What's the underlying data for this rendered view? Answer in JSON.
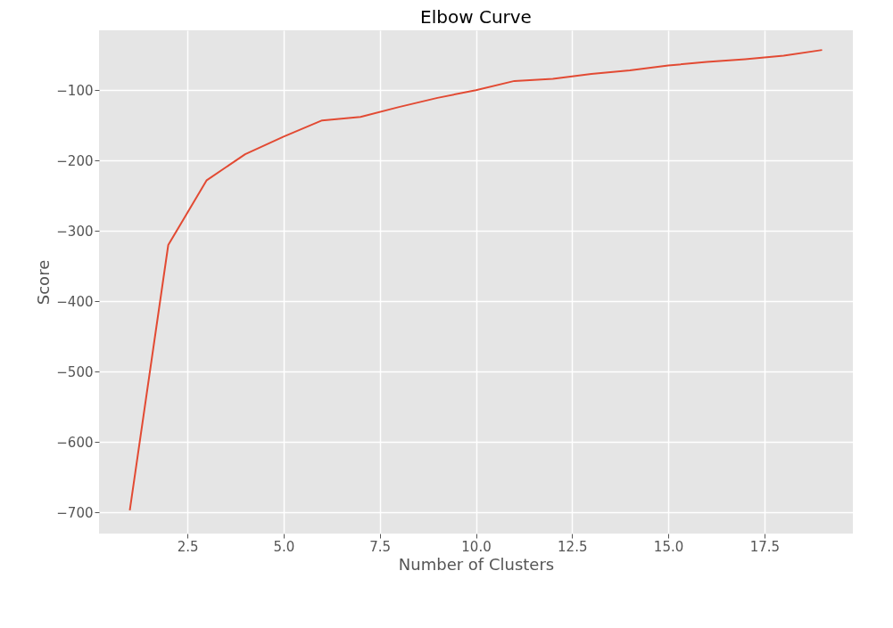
{
  "chart_data": {
    "type": "line",
    "title": "Elbow Curve",
    "xlabel": "Number of Clusters",
    "ylabel": "Score",
    "x": [
      1,
      2,
      3,
      4,
      5,
      6,
      7,
      8,
      9,
      10,
      11,
      12,
      13,
      14,
      15,
      16,
      17,
      18,
      19
    ],
    "series": [
      {
        "color": "#e24a33",
        "values": [
          -697,
          -320,
          -228,
          -191,
          -166,
          -143,
          -138,
          -124,
          -111,
          -100,
          -87,
          -84,
          -77,
          -72,
          -65,
          -60,
          -56,
          -51,
          -43
        ]
      }
    ],
    "xlim": [
      0.2,
      19.8
    ],
    "ylim": [
      -730,
      -15
    ],
    "xticks": [
      {
        "value": 2.5,
        "label": "2.5"
      },
      {
        "value": 5,
        "label": "5.0"
      },
      {
        "value": 7.5,
        "label": "7.5"
      },
      {
        "value": 10,
        "label": "10.0"
      },
      {
        "value": 12.5,
        "label": "12.5"
      },
      {
        "value": 15,
        "label": "15.0"
      },
      {
        "value": 17.5,
        "label": "17.5"
      }
    ],
    "yticks": [
      {
        "value": -700,
        "label": "−700"
      },
      {
        "value": -600,
        "label": "−600"
      },
      {
        "value": -500,
        "label": "−500"
      },
      {
        "value": -400,
        "label": "−400"
      },
      {
        "value": -300,
        "label": "−300"
      },
      {
        "value": -200,
        "label": "−200"
      },
      {
        "value": -100,
        "label": "−100"
      }
    ],
    "grid": true,
    "marker": "none",
    "line_style": "solid"
  }
}
